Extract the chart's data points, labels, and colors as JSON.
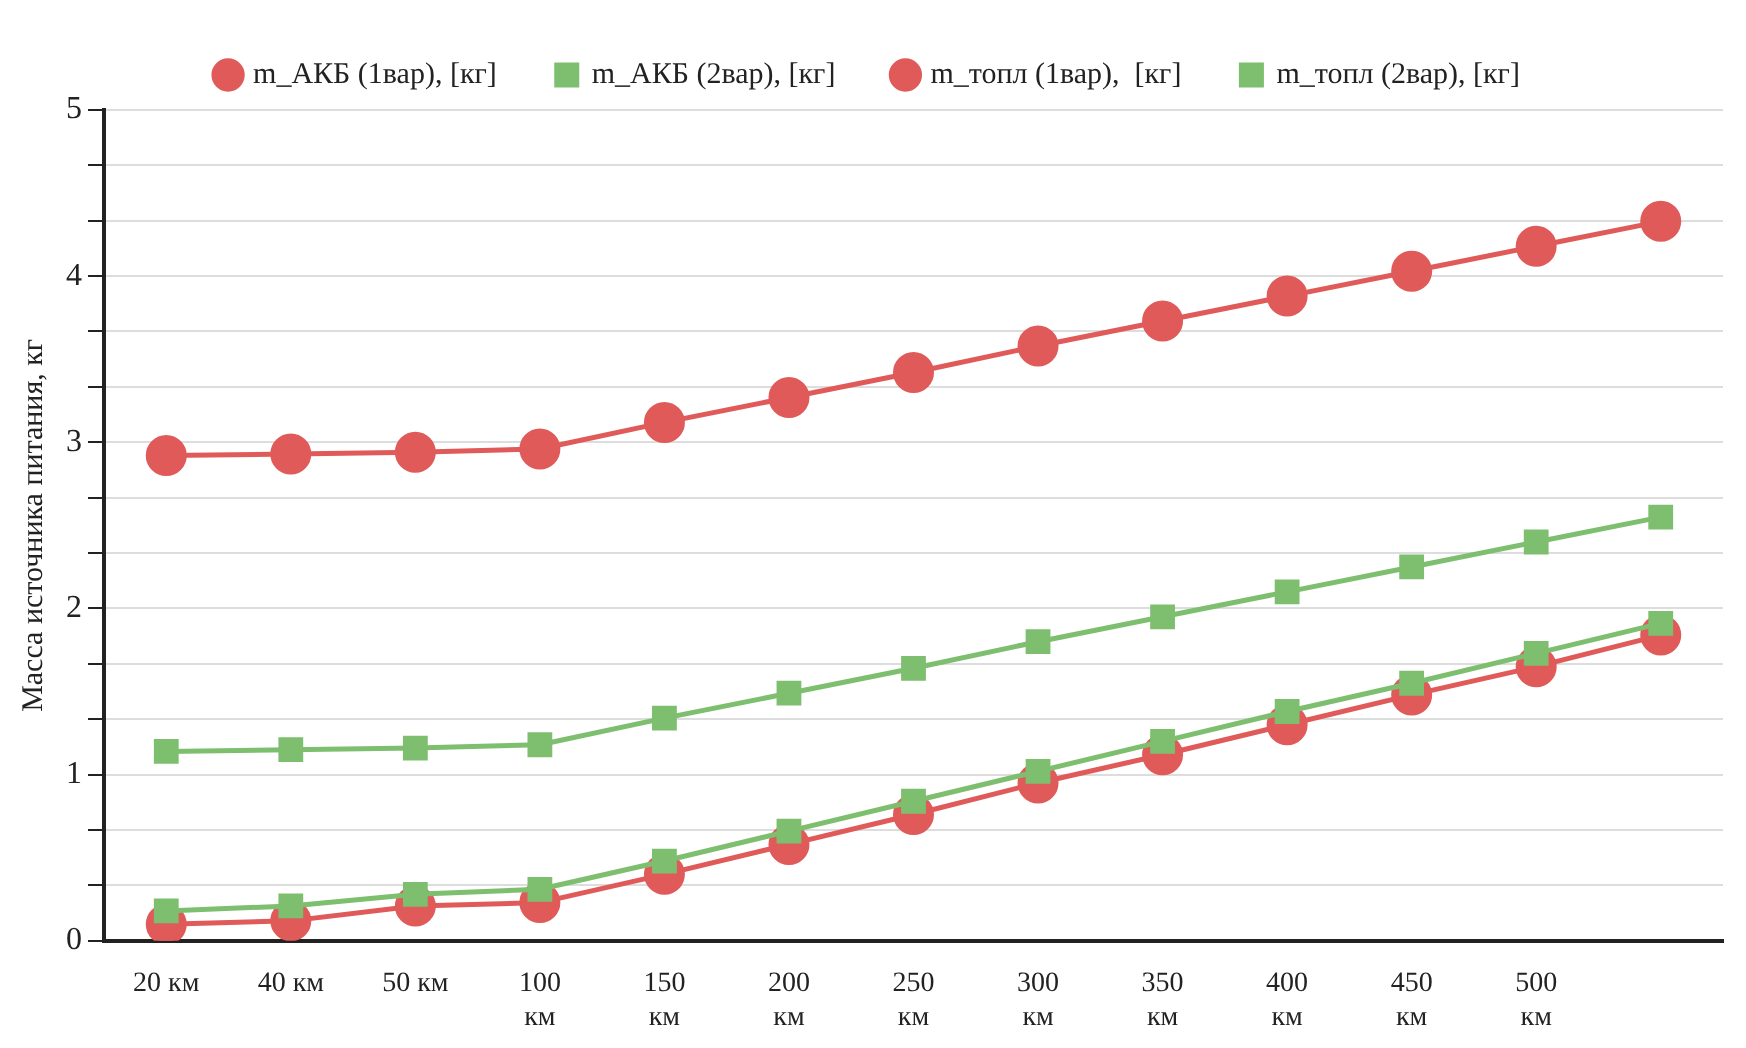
{
  "chart_data": {
    "type": "line",
    "ylabel": "Масса источника питания, кг",
    "categories": [
      "20 км",
      "40 км",
      "50 км",
      "100 км",
      "150 км",
      "200 км",
      "250 км",
      "300 км",
      "350 км",
      "400 км",
      "450 км",
      "500 км",
      null
    ],
    "series": [
      {
        "name": "m_АКБ (1вар), [кг]",
        "color": "#e05a5a",
        "marker": "circle",
        "values": [
          2.92,
          2.93,
          2.94,
          2.96,
          3.12,
          3.27,
          3.42,
          3.58,
          3.73,
          3.88,
          4.03,
          4.18,
          4.33
        ]
      },
      {
        "name": "m_АКБ (2вар), [кг]",
        "color": "#7dbf6e",
        "marker": "square",
        "values": [
          1.14,
          1.15,
          1.16,
          1.18,
          1.34,
          1.49,
          1.64,
          1.8,
          1.95,
          2.1,
          2.25,
          2.4,
          2.55
        ]
      },
      {
        "name": "m_топл (1вар),  [кг]",
        "color": "#e05a5a",
        "marker": "circle",
        "values": [
          0.1,
          0.12,
          0.21,
          0.23,
          0.4,
          0.58,
          0.76,
          0.95,
          1.12,
          1.3,
          1.48,
          1.65,
          1.84
        ]
      },
      {
        "name": "m_топл (2вар), [кг]",
        "color": "#7dbf6e",
        "marker": "square",
        "values": [
          0.18,
          0.21,
          0.28,
          0.31,
          0.48,
          0.66,
          0.84,
          1.02,
          1.2,
          1.38,
          1.55,
          1.73,
          1.91
        ]
      }
    ],
    "ylim": [
      0,
      5
    ],
    "yticks": [
      0,
      {
        "value": 0.333,
        "label": null
      },
      {
        "value": 0.667,
        "label": null
      },
      1,
      {
        "value": 1.333,
        "label": null
      },
      {
        "value": 1.667,
        "label": null
      },
      2,
      {
        "value": 2.333,
        "label": null
      },
      {
        "value": 2.667,
        "label": null
      },
      3,
      {
        "value": 3.333,
        "label": null
      },
      {
        "value": 3.667,
        "label": null
      },
      4,
      {
        "value": 4.333,
        "label": null
      },
      {
        "value": 4.667,
        "label": null
      },
      5
    ],
    "grid": "y",
    "legend": "top",
    "line_style": "solid"
  }
}
